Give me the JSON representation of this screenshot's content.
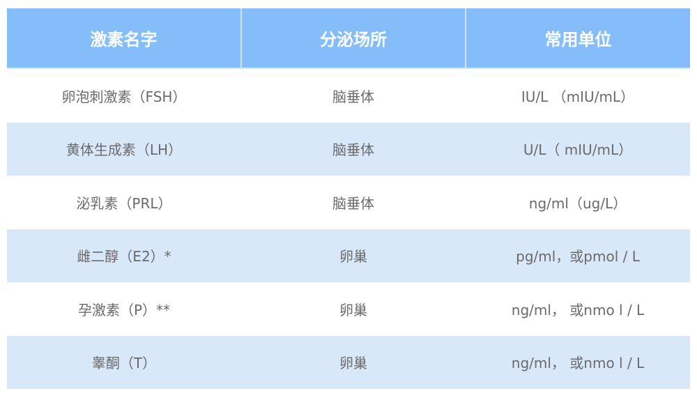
{
  "table": {
    "headers": [
      "激素名字",
      "分泌场所",
      "常用单位"
    ],
    "rows": [
      [
        "卵泡刺激素（FSH）",
        "脑垂体",
        "IU/L （mIU/mL）"
      ],
      [
        "黄体生成素（LH）",
        "脑垂体",
        "U/L（ mIU/mL）"
      ],
      [
        "泌乳素（PRL）",
        "脑垂体",
        "ng/ml（ug/L）"
      ],
      [
        "雌二醇（E2）*",
        "卵巢",
        "pg/ml，或pmol / L"
      ],
      [
        "孕激素（P）**",
        "卵巢",
        "ng/ml， 或nmo l  / L"
      ],
      [
        "睾酮（T）",
        "卵巢",
        "ng/ml， 或nmo l  / L"
      ]
    ]
  },
  "colors": {
    "header": "#84bdf9",
    "alt_row": "#d8e8f9",
    "text": "#6a6a6a"
  }
}
